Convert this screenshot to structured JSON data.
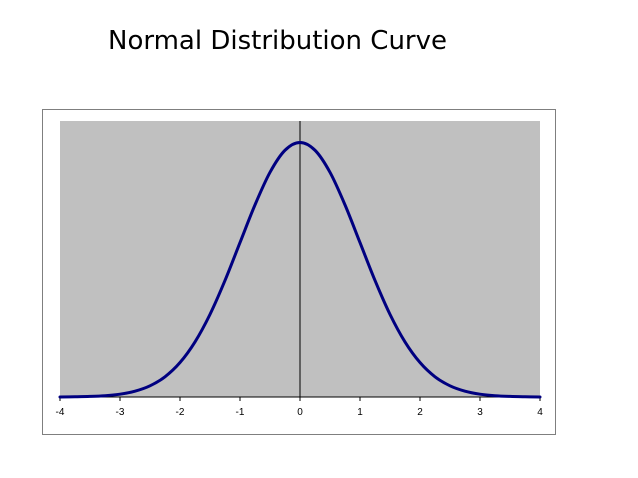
{
  "slide": {
    "title": "Normal Distribution Curve"
  },
  "colors": {
    "plot_area": "#c0c0c0",
    "curve": "#000080",
    "axis": "#000000"
  },
  "chart_data": {
    "type": "line",
    "title": "",
    "xlabel": "",
    "ylabel": "",
    "xlim": [
      -4,
      4
    ],
    "ylim": [
      0,
      0.42
    ],
    "x_ticks": [
      "-4",
      "-3",
      "-2",
      "-1",
      "0",
      "1",
      "2",
      "3",
      "4"
    ],
    "grid": false,
    "legend": "none",
    "series": [
      {
        "x": [
          -4,
          -3.75,
          -3.5,
          -3.25,
          -3,
          -2.75,
          -2.5,
          -2.25,
          -2,
          -1.75,
          -1.5,
          -1.25,
          -1,
          -0.75,
          -0.5,
          -0.25,
          0,
          0.25,
          0.5,
          0.75,
          1,
          1.25,
          1.5,
          1.75,
          2,
          2.25,
          2.5,
          2.75,
          3,
          3.25,
          3.5,
          3.75,
          4
        ],
        "y": [
          0.0001,
          0.0004,
          0.0009,
          0.002,
          0.0044,
          0.0091,
          0.0175,
          0.0317,
          0.054,
          0.0863,
          0.1295,
          0.1826,
          0.242,
          0.3011,
          0.3521,
          0.3867,
          0.3989,
          0.3867,
          0.3521,
          0.3011,
          0.242,
          0.1826,
          0.1295,
          0.0863,
          0.054,
          0.0317,
          0.0175,
          0.0091,
          0.0044,
          0.002,
          0.0009,
          0.0004,
          0.0001
        ]
      }
    ]
  }
}
